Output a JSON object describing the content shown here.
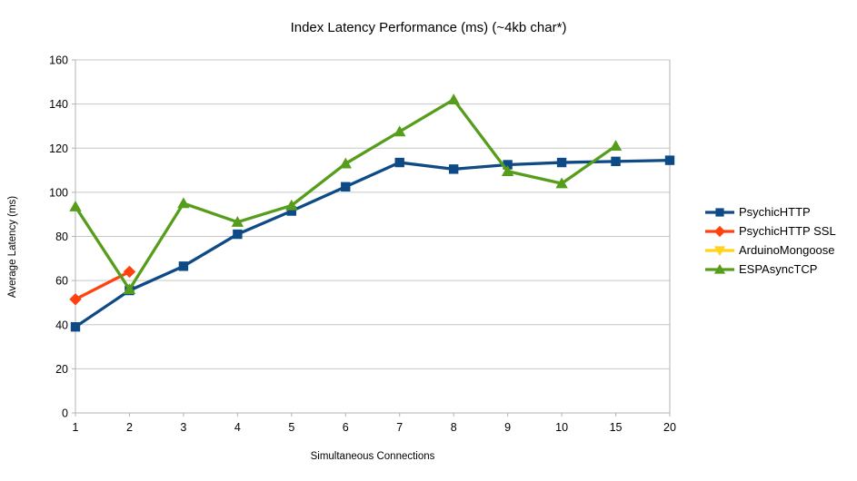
{
  "chart_data": {
    "type": "line",
    "title": "Index Latency Performance (ms) (~4kb char*)",
    "xlabel": "Simultaneous Connections",
    "ylabel": "Average Latency (ms)",
    "categories": [
      "1",
      "2",
      "3",
      "4",
      "5",
      "6",
      "7",
      "8",
      "9",
      "10",
      "15",
      "20"
    ],
    "ylim": [
      0,
      160
    ],
    "ytick_step": 20,
    "grid": "horizontal",
    "legend_position": "right",
    "axis_color": "#b3b3b3",
    "grid_color": "#c6c6c6",
    "text_color": "#000000",
    "series": [
      {
        "name": "PsychicHTTP",
        "color": "#0e4a86",
        "marker": "square",
        "values": [
          39,
          55.5,
          66.5,
          81,
          91.5,
          102.5,
          113.5,
          110.5,
          112.5,
          113.5,
          114,
          114.5
        ]
      },
      {
        "name": "PsychicHTTP SSL",
        "color": "#ff420e",
        "marker": "diamond",
        "values": [
          51.5,
          64,
          null,
          null,
          null,
          null,
          null,
          null,
          null,
          null,
          null,
          null
        ]
      },
      {
        "name": "ArduinoMongoose",
        "color": "#ffd320",
        "marker": "triangle-down",
        "values": [
          null,
          null,
          null,
          null,
          null,
          null,
          null,
          null,
          null,
          null,
          null,
          null
        ]
      },
      {
        "name": "ESPAsyncTCP",
        "color": "#579d1c",
        "marker": "triangle-up",
        "values": [
          93.5,
          56,
          95,
          86.5,
          94,
          113,
          127.5,
          142,
          109.5,
          104,
          121,
          null
        ]
      }
    ]
  }
}
